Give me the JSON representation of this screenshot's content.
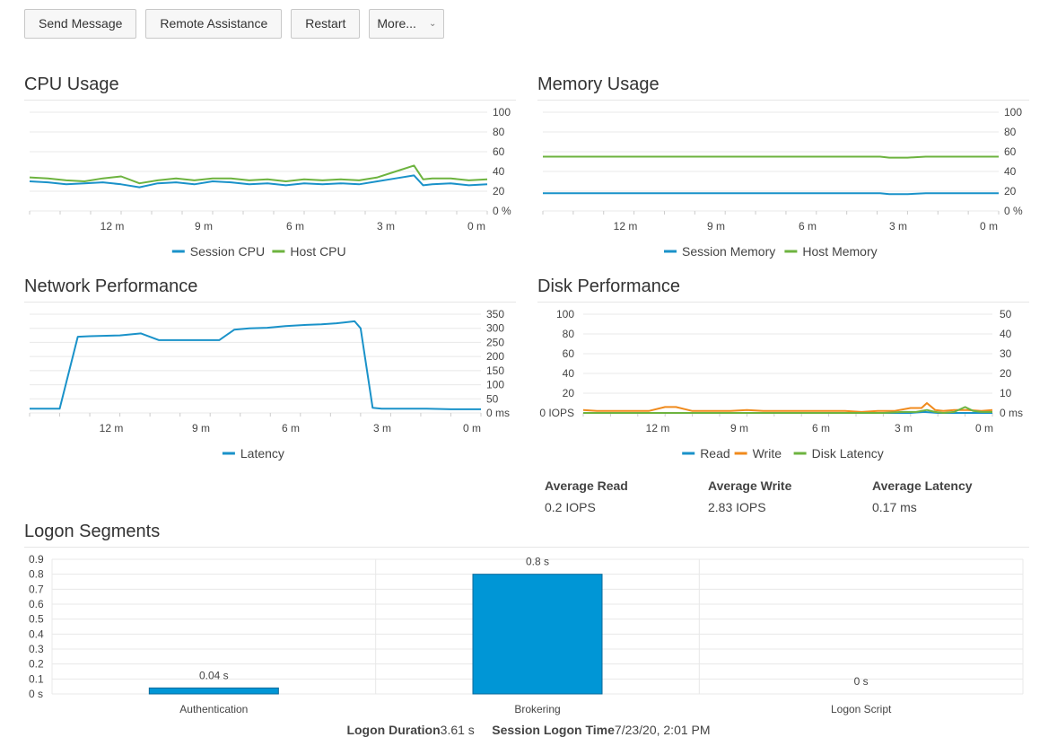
{
  "toolbar": {
    "send_message": "Send Message",
    "remote_assistance": "Remote Assistance",
    "restart": "Restart",
    "more": "More..."
  },
  "panels": {
    "cpu": "CPU Usage",
    "memory": "Memory Usage",
    "network": "Network Performance",
    "disk": "Disk Performance",
    "logon": "Logon Segments"
  },
  "time_ticks": [
    "12 m",
    "9 m",
    "6 m",
    "3 m",
    "0 m"
  ],
  "colors": {
    "blue": "#1a92c9",
    "green": "#6db33f",
    "orange": "#f08a1c",
    "bar": "#0096d6",
    "grid": "#e8e8e8"
  },
  "disk_stats": {
    "avg_read_label": "Average Read",
    "avg_read_value": "0.2 IOPS",
    "avg_write_label": "Average Write",
    "avg_write_value": "2.83 IOPS",
    "avg_latency_label": "Average Latency",
    "avg_latency_value": "0.17 ms"
  },
  "footer": {
    "duration_label": "Logon Duration",
    "duration_value": "3.61 s",
    "session_time_label": "Session Logon Time",
    "session_time_value": "7/23/20, 2:01 PM"
  },
  "chart_data": [
    {
      "id": "cpu",
      "type": "line",
      "title": "CPU Usage",
      "x_ticks": [
        "12 m",
        "9 m",
        "6 m",
        "3 m",
        "0 m"
      ],
      "xlim": [
        15,
        0
      ],
      "y_ticks": [
        "100",
        "80",
        "60",
        "40",
        "20",
        "0 %"
      ],
      "ylim": [
        0,
        100
      ],
      "legend": "bottom-center",
      "series": [
        {
          "name": "Session CPU",
          "color": "#1a92c9",
          "x": [
            15,
            14.4,
            13.8,
            13.2,
            12.6,
            12,
            11.4,
            10.8,
            10.2,
            9.6,
            9,
            8.4,
            7.8,
            7.2,
            6.6,
            6,
            5.4,
            4.8,
            4.2,
            3.6,
            3,
            2.4,
            2.1,
            1.8,
            1.2,
            0.6,
            0
          ],
          "y": [
            30,
            29,
            27,
            28,
            29,
            27,
            24,
            28,
            29,
            27,
            30,
            29,
            27,
            28,
            26,
            28,
            27,
            28,
            27,
            30,
            33,
            36,
            26,
            27,
            28,
            26,
            27
          ]
        },
        {
          "name": "Host CPU",
          "color": "#6db33f",
          "x": [
            15,
            14.4,
            13.8,
            13.2,
            12.6,
            12,
            11.4,
            10.8,
            10.2,
            9.6,
            9,
            8.4,
            7.8,
            7.2,
            6.6,
            6,
            5.4,
            4.8,
            4.2,
            3.6,
            3,
            2.4,
            2.1,
            1.8,
            1.2,
            0.6,
            0
          ],
          "y": [
            34,
            33,
            31,
            30,
            33,
            35,
            28,
            31,
            33,
            31,
            33,
            33,
            31,
            32,
            30,
            32,
            31,
            32,
            31,
            34,
            40,
            46,
            32,
            33,
            33,
            31,
            32
          ]
        }
      ]
    },
    {
      "id": "memory",
      "type": "line",
      "title": "Memory Usage",
      "x_ticks": [
        "12 m",
        "9 m",
        "6 m",
        "3 m",
        "0 m"
      ],
      "xlim": [
        15,
        0
      ],
      "y_ticks": [
        "100",
        "80",
        "60",
        "40",
        "20",
        "0 %"
      ],
      "ylim": [
        0,
        100
      ],
      "legend": "bottom-center",
      "series": [
        {
          "name": "Session Memory",
          "color": "#1a92c9",
          "x": [
            15,
            3.9,
            3.6,
            3,
            2.4,
            0
          ],
          "y": [
            18,
            18,
            17,
            17,
            18,
            18
          ]
        },
        {
          "name": "Host Memory",
          "color": "#6db33f",
          "x": [
            15,
            3.9,
            3.6,
            3,
            2.4,
            0
          ],
          "y": [
            55,
            55,
            54,
            54,
            55,
            55
          ]
        }
      ]
    },
    {
      "id": "network",
      "type": "line",
      "title": "Network Performance",
      "x_ticks": [
        "12 m",
        "9 m",
        "6 m",
        "3 m",
        "0 m"
      ],
      "xlim": [
        15,
        0
      ],
      "y_ticks": [
        "350",
        "300",
        "250",
        "200",
        "150",
        "100",
        "50",
        "0 ms"
      ],
      "ylim": [
        0,
        350
      ],
      "legend": "bottom-center",
      "series": [
        {
          "name": "Latency",
          "color": "#1a92c9",
          "x": [
            15,
            14,
            13.4,
            13,
            12,
            11.3,
            10.7,
            10.2,
            8.7,
            8.2,
            7.7,
            7.1,
            6.5,
            5.8,
            5.3,
            4.8,
            4.2,
            4.0,
            3.6,
            3.3,
            2.5,
            1.8,
            1,
            0
          ],
          "y": [
            15,
            15,
            270,
            272,
            275,
            282,
            258,
            258,
            258,
            295,
            300,
            302,
            308,
            312,
            314,
            318,
            325,
            300,
            18,
            15,
            15,
            15,
            13,
            13
          ]
        }
      ]
    },
    {
      "id": "disk",
      "type": "line",
      "title": "Disk Performance",
      "x_ticks": [
        "12 m",
        "9 m",
        "6 m",
        "3 m",
        "0 m"
      ],
      "xlim": [
        15,
        0
      ],
      "y_ticks_left": [
        "100",
        "80",
        "60",
        "40",
        "20",
        "0 IOPS"
      ],
      "ylim_left": [
        0,
        100
      ],
      "y_ticks_right": [
        "50",
        "40",
        "30",
        "20",
        "10",
        "0 ms"
      ],
      "ylim_right": [
        0,
        50
      ],
      "legend": "bottom-center",
      "series": [
        {
          "name": "Read",
          "color": "#1a92c9",
          "axis": "left",
          "x": [
            15,
            3,
            2.5,
            2,
            1.5,
            0
          ],
          "y": [
            0,
            0,
            1,
            0,
            0,
            0
          ]
        },
        {
          "name": "Write",
          "color": "#f08a1c",
          "axis": "left",
          "x": [
            15,
            14.5,
            13,
            12.6,
            12,
            11.6,
            11,
            10.4,
            10,
            9.6,
            9,
            8.4,
            7.8,
            7.2,
            6.6,
            6,
            5.4,
            4.8,
            4.2,
            3.6,
            3,
            2.6,
            2.4,
            2.1,
            1.8,
            1.4,
            0.9,
            0.4,
            0
          ],
          "y": [
            3,
            2,
            2,
            2,
            6,
            6,
            2,
            2,
            2,
            2,
            3,
            2,
            2,
            2,
            2,
            2,
            2,
            1,
            2,
            2,
            5,
            5,
            10,
            3,
            2,
            3,
            3,
            2,
            3
          ]
        },
        {
          "name": "Disk Latency",
          "color": "#6db33f",
          "axis": "left",
          "x": [
            15,
            4,
            3.3,
            2.8,
            2.4,
            2.1,
            1.8,
            1.4,
            1.0,
            0.7,
            0.4,
            0
          ],
          "y": [
            0,
            0,
            1,
            1,
            3,
            1,
            0,
            1,
            6,
            2,
            1,
            1
          ]
        }
      ]
    },
    {
      "id": "logon",
      "type": "bar",
      "title": "Logon Segments",
      "categories": [
        "Authentication",
        "Brokering",
        "Logon Script"
      ],
      "values": [
        0.04,
        0.8,
        0
      ],
      "data_labels": [
        "0.04 s",
        "0.8 s",
        "0 s"
      ],
      "y_ticks": [
        "0.9",
        "0.8",
        "0.7",
        "0.6",
        "0.5",
        "0.4",
        "0.3",
        "0.2",
        "0.1",
        "0 s"
      ],
      "ylim": [
        0,
        0.9
      ],
      "color": "#0096d6"
    }
  ]
}
